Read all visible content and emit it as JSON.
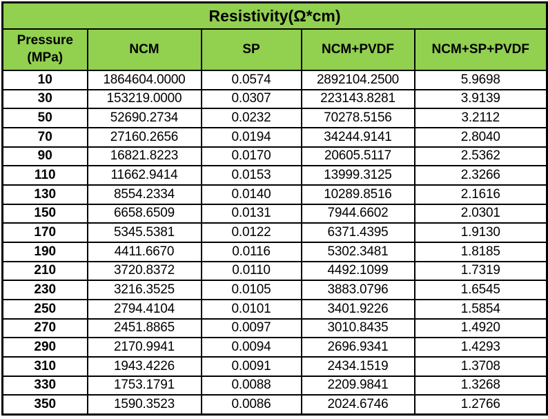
{
  "chart_data": {
    "type": "table",
    "title": "Resistivity(Ω*cm)",
    "columns": [
      "Pressure (MPa)",
      "NCM",
      "SP",
      "NCM+PVDF",
      "NCM+SP+PVDF"
    ],
    "rows": [
      [
        "10",
        "1864604.0000",
        "0.0574",
        "2892104.2500",
        "5.9698"
      ],
      [
        "30",
        "153219.0000",
        "0.0307",
        "223143.8281",
        "3.9139"
      ],
      [
        "50",
        "52690.2734",
        "0.0232",
        "70278.5156",
        "3.2112"
      ],
      [
        "70",
        "27160.2656",
        "0.0194",
        "34244.9141",
        "2.8040"
      ],
      [
        "90",
        "16821.8223",
        "0.0170",
        "20605.5117",
        "2.5362"
      ],
      [
        "110",
        "11662.9414",
        "0.0153",
        "13999.3125",
        "2.3266"
      ],
      [
        "130",
        "8554.2334",
        "0.0140",
        "10289.8516",
        "2.1616"
      ],
      [
        "150",
        "6658.6509",
        "0.0131",
        "7944.6602",
        "2.0301"
      ],
      [
        "170",
        "5345.5381",
        "0.0122",
        "6371.4395",
        "1.9130"
      ],
      [
        "190",
        "4411.6670",
        "0.0116",
        "5302.3481",
        "1.8185"
      ],
      [
        "210",
        "3720.8372",
        "0.0110",
        "4492.1099",
        "1.7319"
      ],
      [
        "230",
        "3216.3525",
        "0.0105",
        "3883.0796",
        "1.6545"
      ],
      [
        "250",
        "2794.4104",
        "0.0101",
        "3401.9226",
        "1.5854"
      ],
      [
        "270",
        "2451.8865",
        "0.0097",
        "3010.8435",
        "1.4920"
      ],
      [
        "290",
        "2170.9941",
        "0.0094",
        "2696.9341",
        "1.4293"
      ],
      [
        "310",
        "1943.4226",
        "0.0091",
        "2434.1519",
        "1.3708"
      ],
      [
        "330",
        "1753.1791",
        "0.0088",
        "2209.9841",
        "1.3268"
      ],
      [
        "350",
        "1590.3523",
        "0.0086",
        "2024.6746",
        "1.2766"
      ]
    ],
    "legend_position": "none",
    "grid": true
  },
  "colors": {
    "header_bg": "#92D050",
    "border": "#000000",
    "cell_bg": "#FFFFFF",
    "text": "#000000"
  }
}
